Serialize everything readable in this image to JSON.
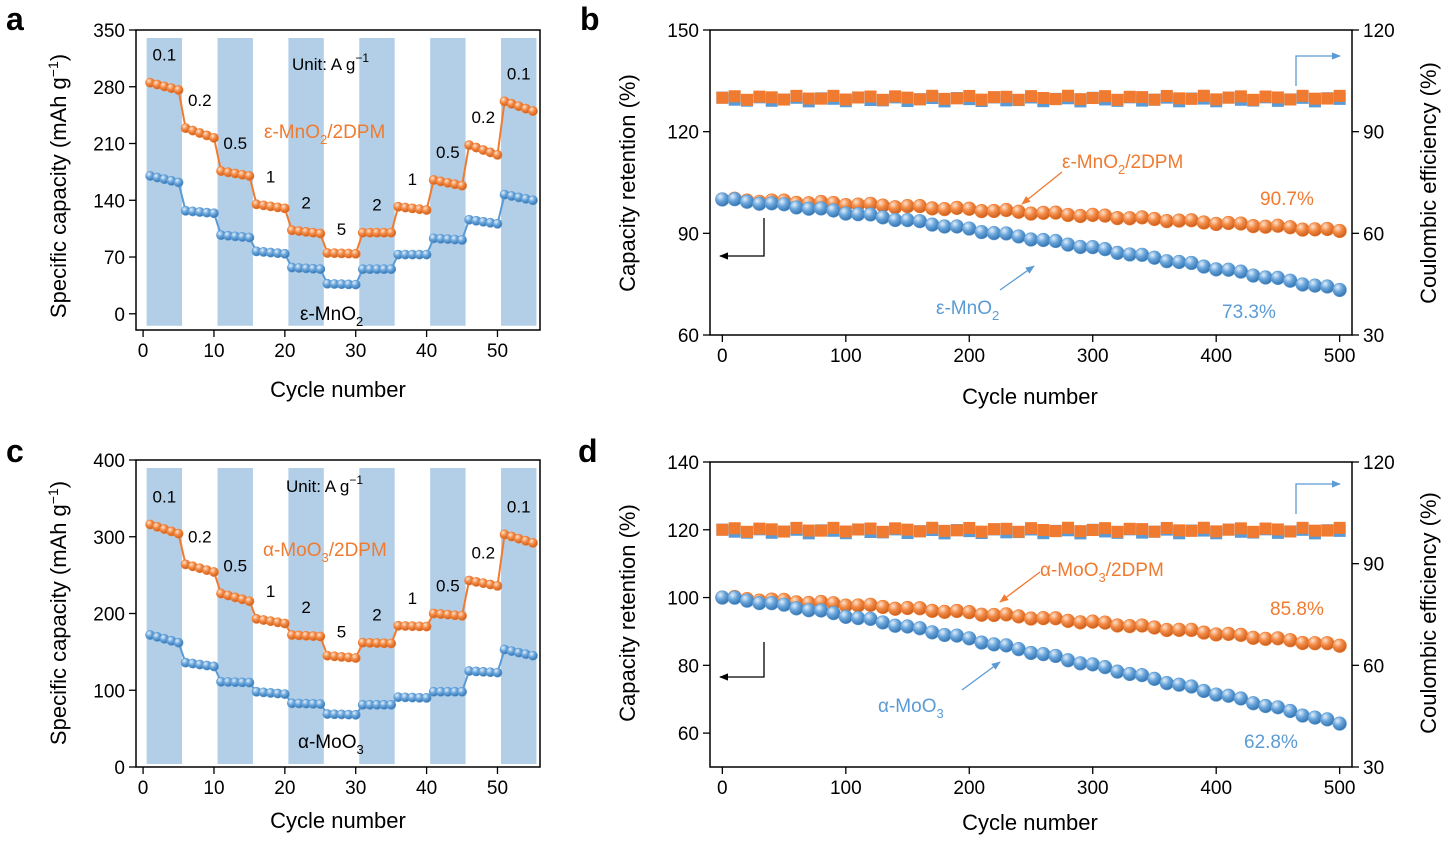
{
  "colors": {
    "orange": "#f07b30",
    "blue": "#5b9bd5",
    "band": "#b3cfe8",
    "axis": "#000000"
  },
  "panels": {
    "a": {
      "letter": "a",
      "unit_text": "Unit: A g",
      "unit_sup": "−1",
      "xlabel": "Cycle number",
      "ylabel_main": "Specific capacity (mAh g",
      "ylabel_sup": "−1",
      "ylabel_tail": ")",
      "series_mod": {
        "pre": "ε-MnO",
        "sub": "2",
        "post": "/2DPM"
      },
      "series_base": {
        "pre": "ε-MnO",
        "sub": "2",
        "post": ""
      },
      "rate_labels": [
        "0.1",
        "0.2",
        "0.5",
        "1",
        "2",
        "5",
        "2",
        "1",
        "0.5",
        "0.2",
        "0.1"
      ]
    },
    "b": {
      "letter": "b",
      "xlabel": "Cycle number",
      "ylabel_left": "Capacity retention (%)",
      "ylabel_right": "Coulombic efficiency (%)",
      "series_mod": {
        "pre": "ε-MnO",
        "sub": "2",
        "post": "/2DPM"
      },
      "series_base": {
        "pre": "ε-MnO",
        "sub": "2",
        "post": ""
      },
      "pct_mod": "90.7%",
      "pct_base": "73.3%"
    },
    "c": {
      "letter": "c",
      "unit_text": "Unit: A g",
      "unit_sup": "−1",
      "xlabel": "Cycle number",
      "ylabel_main": "Specific capacity (mAh g",
      "ylabel_sup": "−1",
      "ylabel_tail": ")",
      "series_mod": {
        "pre": "α-MoO",
        "sub": "3",
        "post": "/2DPM"
      },
      "series_base": {
        "pre": "α-MoO",
        "sub": "3",
        "post": ""
      },
      "rate_labels": [
        "0.1",
        "0.2",
        "0.5",
        "1",
        "2",
        "5",
        "2",
        "1",
        "0.5",
        "0.2",
        "0.1"
      ]
    },
    "d": {
      "letter": "d",
      "xlabel": "Cycle number",
      "ylabel_left": "Capacity retention (%)",
      "ylabel_right": "Coulombic efficiency (%)",
      "series_mod": {
        "pre": "α-MoO",
        "sub": "3",
        "post": "/2DPM"
      },
      "series_base": {
        "pre": "α-MoO",
        "sub": "3",
        "post": ""
      },
      "pct_mod": "85.8%",
      "pct_base": "62.8%"
    }
  },
  "chart_data": [
    {
      "panel": "a",
      "type": "line",
      "xlabel": "Cycle number",
      "ylabel": "Specific capacity (mAh g−1)",
      "xlim": [
        -1,
        56
      ],
      "ylim": [
        -20,
        350
      ],
      "xticks": [
        0,
        10,
        20,
        30,
        40,
        50
      ],
      "yticks": [
        0,
        70,
        140,
        210,
        280,
        350
      ],
      "grid": false,
      "rates": [
        "0.1",
        "0.2",
        "0.5",
        "1",
        "2",
        "5",
        "2",
        "1",
        "0.5",
        "0.2",
        "0.1"
      ],
      "series": [
        {
          "name": "ε-MnO2/2DPM",
          "color": "orange",
          "segments": [
            [
              285,
              276
            ],
            [
              229,
              217
            ],
            [
              176,
              170
            ],
            [
              135,
              130
            ],
            [
              103,
              99
            ],
            [
              75,
              74
            ],
            [
              100,
              100
            ],
            [
              132,
              128
            ],
            [
              165,
              158
            ],
            [
              208,
              196
            ],
            [
              262,
              250
            ]
          ]
        },
        {
          "name": "ε-MnO2",
          "color": "blue",
          "segments": [
            [
              170,
              162
            ],
            [
              127,
              124
            ],
            [
              97,
              94
            ],
            [
              77,
              74
            ],
            [
              57,
              55
            ],
            [
              37,
              36
            ],
            [
              55,
              55
            ],
            [
              73,
              73
            ],
            [
              93,
              91
            ],
            [
              116,
              111
            ],
            [
              147,
              140
            ]
          ]
        }
      ]
    },
    {
      "panel": "b",
      "type": "scatter",
      "xlabel": "Cycle number",
      "ylabel": "Capacity retention (%)",
      "y2label": "Coulombic efficiency (%)",
      "xlim": [
        -10,
        510
      ],
      "ylim": [
        60,
        150
      ],
      "y2lim": [
        30,
        120
      ],
      "xticks": [
        0,
        100,
        200,
        300,
        400,
        500
      ],
      "yticks": [
        60,
        90,
        120,
        150
      ],
      "y2ticks": [
        30,
        60,
        90,
        120
      ],
      "step": 10,
      "grid": false,
      "series": [
        {
          "name": "ε-MnO2/2DPM",
          "color": "orange",
          "axis": "left",
          "start": 100,
          "end": 90.7
        },
        {
          "name": "ε-MnO2",
          "color": "blue",
          "axis": "left",
          "start": 100,
          "end": 73.3
        },
        {
          "name": "ε-MnO2 CE",
          "color": "blue",
          "axis": "right",
          "marker": "square",
          "value": 100
        },
        {
          "name": "ε-MnO2/2DPM CE",
          "color": "orange",
          "axis": "right",
          "marker": "square",
          "value": 100
        }
      ]
    },
    {
      "panel": "c",
      "type": "line",
      "xlabel": "Cycle number",
      "ylabel": "Specific capacity (mAh g−1)",
      "xlim": [
        -1,
        56
      ],
      "ylim": [
        0,
        400
      ],
      "xticks": [
        0,
        10,
        20,
        30,
        40,
        50
      ],
      "yticks": [
        0,
        100,
        200,
        300,
        400
      ],
      "grid": false,
      "rates": [
        "0.1",
        "0.2",
        "0.5",
        "1",
        "2",
        "5",
        "2",
        "1",
        "0.5",
        "0.2",
        "0.1"
      ],
      "series": [
        {
          "name": "α-MoO3/2DPM",
          "color": "orange",
          "segments": [
            [
              316,
              304
            ],
            [
              264,
              254
            ],
            [
              226,
              216
            ],
            [
              193,
              187
            ],
            [
              172,
              170
            ],
            [
              145,
              142
            ],
            [
              162,
              161
            ],
            [
              184,
              183
            ],
            [
              200,
              197
            ],
            [
              243,
              236
            ],
            [
              303,
              292
            ]
          ]
        },
        {
          "name": "α-MoO3",
          "color": "blue",
          "segments": [
            [
              172,
              162
            ],
            [
              136,
              131
            ],
            [
              111,
              110
            ],
            [
              98,
              95
            ],
            [
              83,
              82
            ],
            [
              69,
              68
            ],
            [
              81,
              81
            ],
            [
              91,
              90
            ],
            [
              98,
              98
            ],
            [
              125,
              123
            ],
            [
              153,
              145
            ]
          ]
        }
      ]
    },
    {
      "panel": "d",
      "type": "scatter",
      "xlabel": "Cycle number",
      "ylabel": "Capacity retention (%)",
      "y2label": "Coulombic efficiency (%)",
      "xlim": [
        -10,
        510
      ],
      "ylim": [
        50,
        140
      ],
      "y2lim": [
        30,
        120
      ],
      "xticks": [
        0,
        100,
        200,
        300,
        400,
        500
      ],
      "yticks": [
        60,
        80,
        100,
        120,
        140
      ],
      "y2ticks": [
        30,
        60,
        90,
        120
      ],
      "step": 10,
      "grid": false,
      "series": [
        {
          "name": "α-MoO3/2DPM",
          "color": "orange",
          "axis": "left",
          "start": 100,
          "end": 85.8
        },
        {
          "name": "α-MoO3",
          "color": "blue",
          "axis": "left",
          "start": 100,
          "end": 62.8
        },
        {
          "name": "α-MoO3 CE",
          "color": "blue",
          "axis": "right",
          "marker": "square",
          "value": 100
        },
        {
          "name": "α-MoO3/2DPM CE",
          "color": "orange",
          "axis": "right",
          "marker": "square",
          "value": 100
        }
      ]
    }
  ]
}
